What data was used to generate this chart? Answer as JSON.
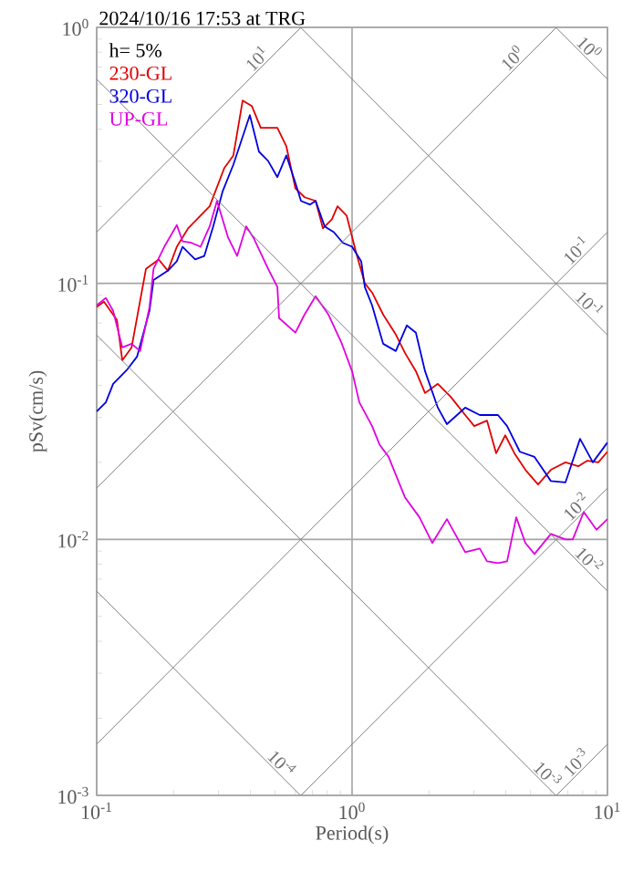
{
  "chart_data": {
    "type": "line",
    "title": "2024/10/16 17:53 at TRG",
    "xlabel": "Period(s)",
    "ylabel": "pSv(cm/s)",
    "legend_title": "h= 5%",
    "legend": "top left",
    "log": "xy",
    "grid": true,
    "xlim": [
      0.1,
      10
    ],
    "ylim": [
      0.001,
      1
    ],
    "xticks": [
      {
        "value": 0.1,
        "label": "10$^{-1}$"
      },
      {
        "value": 1,
        "label": "10$^{0}$"
      },
      {
        "value": 10,
        "label": "10$^{1}$"
      }
    ],
    "yticks": [
      {
        "value": 0.001,
        "label": "10$^{-3}$"
      },
      {
        "value": 0.01,
        "label": "10$^{-2}$"
      },
      {
        "value": 0.1,
        "label": "10$^{-1}$"
      },
      {
        "value": 1,
        "label": "10$^{0}$"
      }
    ],
    "series": [
      {
        "name": "230-GL",
        "color": "#e00000",
        "x": [
          0.1,
          0.1068,
          0.12,
          0.126,
          0.137,
          0.156,
          0.175,
          0.19,
          0.206,
          0.228,
          0.277,
          0.316,
          0.343,
          0.373,
          0.405,
          0.439,
          0.51,
          0.553,
          0.6,
          0.652,
          0.72,
          0.769,
          0.834,
          0.877,
          0.952,
          1.033,
          1.122,
          1.198,
          1.323,
          1.484,
          1.611,
          1.778,
          1.931,
          2.167,
          2.431,
          2.773,
          3.01,
          3.377,
          3.667,
          3.981,
          4.323,
          4.771,
          5.35,
          6.005,
          6.851,
          7.686,
          8.345,
          9.21,
          10
        ],
        "values": [
          0.0808,
          0.0848,
          0.072,
          0.0501,
          0.0562,
          0.114,
          0.124,
          0.112,
          0.139,
          0.164,
          0.2,
          0.282,
          0.316,
          0.518,
          0.493,
          0.405,
          0.405,
          0.343,
          0.235,
          0.217,
          0.21,
          0.164,
          0.178,
          0.2,
          0.184,
          0.134,
          0.1,
          0.0921,
          0.0756,
          0.0631,
          0.0535,
          0.0454,
          0.0373,
          0.0405,
          0.0361,
          0.0306,
          0.0277,
          0.0291,
          0.0217,
          0.0255,
          0.0217,
          0.0187,
          0.0164,
          0.0187,
          0.02,
          0.0193,
          0.0203,
          0.02,
          0.022
        ]
      },
      {
        "name": "320-GL",
        "color": "#0000e0",
        "x": [
          0.1,
          0.1086,
          0.116,
          0.132,
          0.144,
          0.161,
          0.167,
          0.19,
          0.206,
          0.217,
          0.243,
          0.264,
          0.286,
          0.311,
          0.343,
          0.398,
          0.432,
          0.469,
          0.51,
          0.553,
          0.6,
          0.631,
          0.685,
          0.72,
          0.781,
          0.848,
          0.921,
          1.0,
          1.086,
          1.122,
          1.198,
          1.323,
          1.484,
          1.638,
          1.778,
          1.931,
          2.167,
          2.352,
          2.773,
          3.162,
          3.727,
          4.047,
          4.54,
          5.18,
          6.005,
          6.851,
          7.813,
          8.767,
          10
        ],
        "values": [
          0.0316,
          0.0343,
          0.0405,
          0.0462,
          0.0518,
          0.0781,
          0.103,
          0.112,
          0.122,
          0.139,
          0.124,
          0.128,
          0.167,
          0.228,
          0.291,
          0.454,
          0.327,
          0.301,
          0.26,
          0.316,
          0.247,
          0.21,
          0.203,
          0.21,
          0.167,
          0.1585,
          0.144,
          0.139,
          0.122,
          0.0968,
          0.0821,
          0.0581,
          0.0544,
          0.0685,
          0.0642,
          0.0454,
          0.0327,
          0.0282,
          0.0327,
          0.0306,
          0.0306,
          0.0277,
          0.022,
          0.021,
          0.0169,
          0.0167,
          0.0247,
          0.02,
          0.0239
        ]
      },
      {
        "name": "UP-GL",
        "color": "#e000e0",
        "x": [
          0.1,
          0.1086,
          0.116,
          0.126,
          0.137,
          0.148,
          0.161,
          0.167,
          0.184,
          0.206,
          0.217,
          0.235,
          0.255,
          0.277,
          0.296,
          0.327,
          0.355,
          0.385,
          0.411,
          0.469,
          0.51,
          0.518,
          0.6,
          0.652,
          0.72,
          0.808,
          0.906,
          1.0,
          1.068,
          1.198,
          1.28,
          1.39,
          1.611,
          1.837,
          2.062,
          2.352,
          2.773,
          3.162,
          3.377,
          3.727,
          4.047,
          4.394,
          4.771,
          5.18,
          6.005,
          6.851,
          7.315,
          8.075,
          9.06,
          10
        ],
        "values": [
          0.0821,
          0.0877,
          0.0781,
          0.0562,
          0.0581,
          0.0544,
          0.0808,
          0.114,
          0.139,
          0.169,
          0.146,
          0.144,
          0.139,
          0.167,
          0.21,
          0.151,
          0.128,
          0.167,
          0.151,
          0.114,
          0.0968,
          0.0732,
          0.0642,
          0.0756,
          0.0891,
          0.0756,
          0.0591,
          0.0454,
          0.0343,
          0.0277,
          0.0235,
          0.021,
          0.0146,
          0.0122,
          0.00968,
          0.012,
          0.00891,
          0.00921,
          0.00821,
          0.00808,
          0.00821,
          0.0122,
          0.00968,
          0.00877,
          0.0105,
          0.01,
          0.01,
          0.0128,
          0.0109,
          0.012
        ]
      },
      {
        "color": "#808080",
        "x": [
          0.1,
          0.631
        ],
        "values": [
          0.1585,
          1.0
        ]
      },
      {
        "color": "#808080",
        "x": [
          0.1,
          6.31
        ],
        "values": [
          0.01585,
          1.0
        ]
      },
      {
        "color": "#808080",
        "x": [
          0.1,
          10
        ],
        "values": [
          0.001585,
          0.1585
        ]
      },
      {
        "color": "#808080",
        "x": [
          0.631,
          10
        ],
        "values": [
          0.001,
          0.01585
        ]
      },
      {
        "color": "#808080",
        "x": [
          6.31,
          10
        ],
        "values": [
          0.001,
          0.001585
        ]
      },
      {
        "color": "#808080",
        "x": [
          6.28,
          10
        ],
        "values": [
          1.0,
          0.628
        ]
      },
      {
        "color": "#808080",
        "x": [
          0.628,
          10
        ],
        "values": [
          1.0,
          0.0628
        ]
      },
      {
        "color": "#808080",
        "x": [
          0.1,
          10
        ],
        "values": [
          0.628,
          0.00628
        ]
      },
      {
        "color": "#808080",
        "x": [
          0.1,
          6.28
        ],
        "values": [
          0.0628,
          0.001
        ]
      },
      {
        "color": "#808080",
        "x": [
          0.1,
          0.628
        ],
        "values": [
          0.00628,
          0.001
        ]
      }
    ],
    "annotations": [
      {
        "text": "10$^{1}$",
        "x": 0.45,
        "y": 0.713
      },
      {
        "text": "10$^{0}$",
        "x": 4.5,
        "y": 0.716
      },
      {
        "text": "10$^{-1}$",
        "x": 8,
        "y": 0.127
      },
      {
        "text": "10$^{-2}$",
        "x": 8,
        "y": 0.0127
      },
      {
        "text": "10$^{-3}$",
        "x": 8,
        "y": 0.00127
      },
      {
        "text": "10$^{0}$",
        "x": 8,
        "y": 0.785
      },
      {
        "text": "10$^{-1}$",
        "x": 8,
        "y": 0.0785
      },
      {
        "text": "10$^{-2}$",
        "x": 8,
        "y": 0.00785
      },
      {
        "text": "10$^{-3}$",
        "x": 5.5,
        "y": 0.00114
      },
      {
        "text": "10$^{-4}$",
        "x": 0.5,
        "y": 0.00126
      }
    ]
  }
}
